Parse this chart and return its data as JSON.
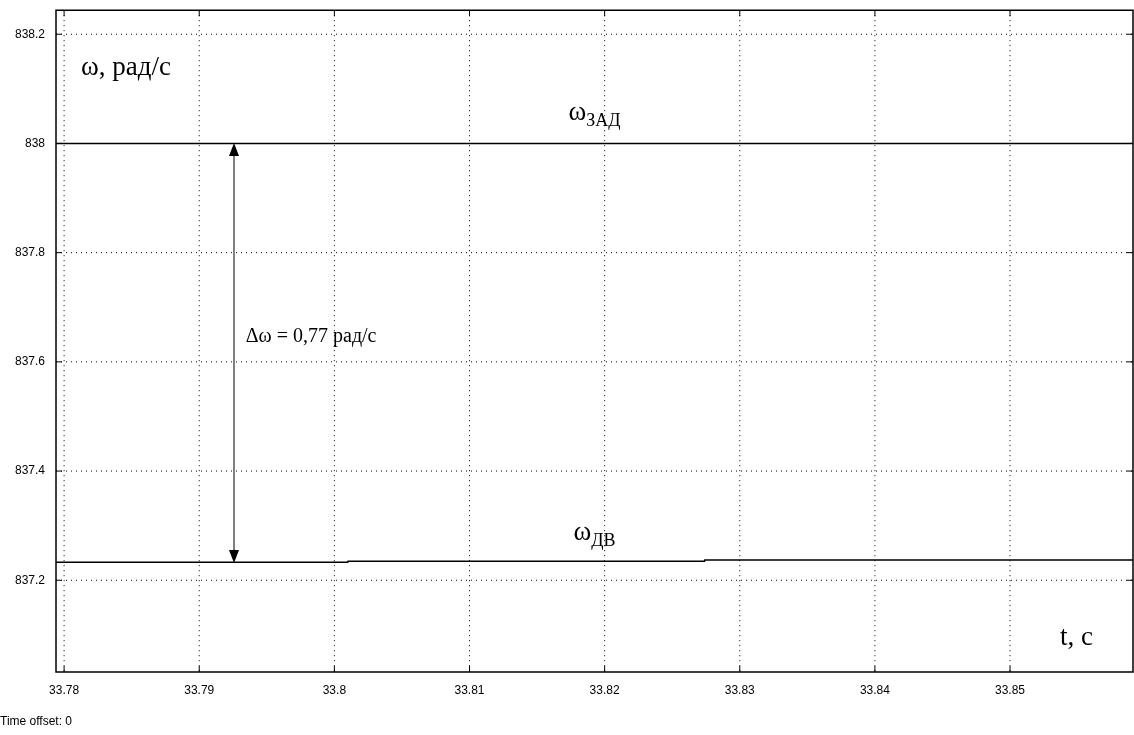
{
  "chart_data": {
    "type": "line",
    "ylabel": "ω, рад/с",
    "xlabel": "t, с",
    "xlim": [
      33.7794,
      33.8591
    ],
    "xticks": [
      33.78,
      33.79,
      33.8,
      33.81,
      33.82,
      33.83,
      33.84,
      33.85
    ],
    "ylim": [
      837.032,
      838.244
    ],
    "yticks": [
      837.2,
      837.4,
      837.6,
      837.8,
      838,
      838.2
    ],
    "grid": true,
    "legend": false,
    "marker": "none",
    "line_style": "solid",
    "series": [
      {
        "name": "ω$_{ЗАД}$",
        "type": "line",
        "color": "#000000",
        "x": [
          33.7794,
          33.8591
        ],
        "values": [
          838,
          838
        ]
      },
      {
        "name": "ω$_{ДВ}$",
        "type": "step",
        "color": "#000000",
        "x": [
          33.7794,
          33.801,
          33.8274,
          33.8538,
          33.8591
        ],
        "values": [
          837.231,
          837.233,
          837.235,
          837.237,
          837.237
        ]
      }
    ],
    "annotations": [
      "Δω = 0,77 рад/с",
      "Time offset:  0"
    ]
  }
}
